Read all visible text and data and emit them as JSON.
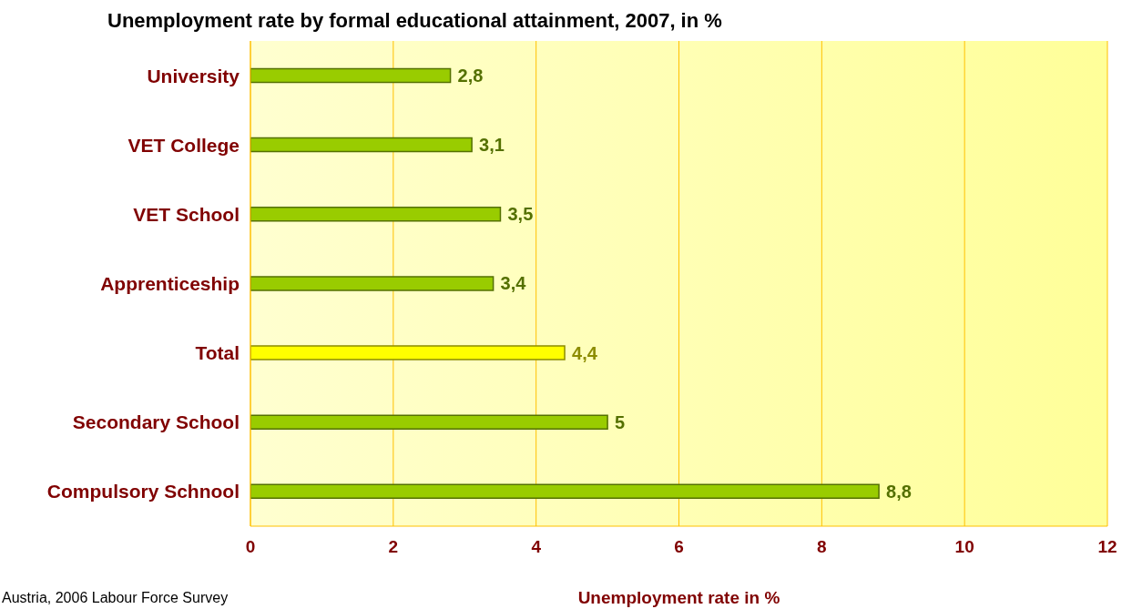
{
  "chart_data": {
    "type": "bar",
    "orientation": "horizontal",
    "title": "Unemployment rate by formal educational attainment, 2007, in %",
    "xlabel": "Unemployment rate in %",
    "categories": [
      "University",
      "VET College",
      "VET School",
      "Apprenticeship",
      "Total",
      "Secondary School",
      "Compulsory Schnool"
    ],
    "values": [
      2.8,
      3.1,
      3.5,
      3.4,
      4.4,
      5,
      8.8
    ],
    "value_labels": [
      "2,8",
      "3,1",
      "3,5",
      "3,4",
      "4,4",
      "5",
      "8,8"
    ],
    "colors": [
      "#99cc00",
      "#99cc00",
      "#99cc00",
      "#99cc00",
      "#ffff00",
      "#99cc00",
      "#99cc00"
    ],
    "xlim": [
      0,
      12
    ],
    "xticks": [
      0,
      2,
      4,
      6,
      8,
      10,
      12
    ],
    "grid": "x",
    "annotations": [
      "Austria, 2006 Labour Force Survey"
    ]
  }
}
